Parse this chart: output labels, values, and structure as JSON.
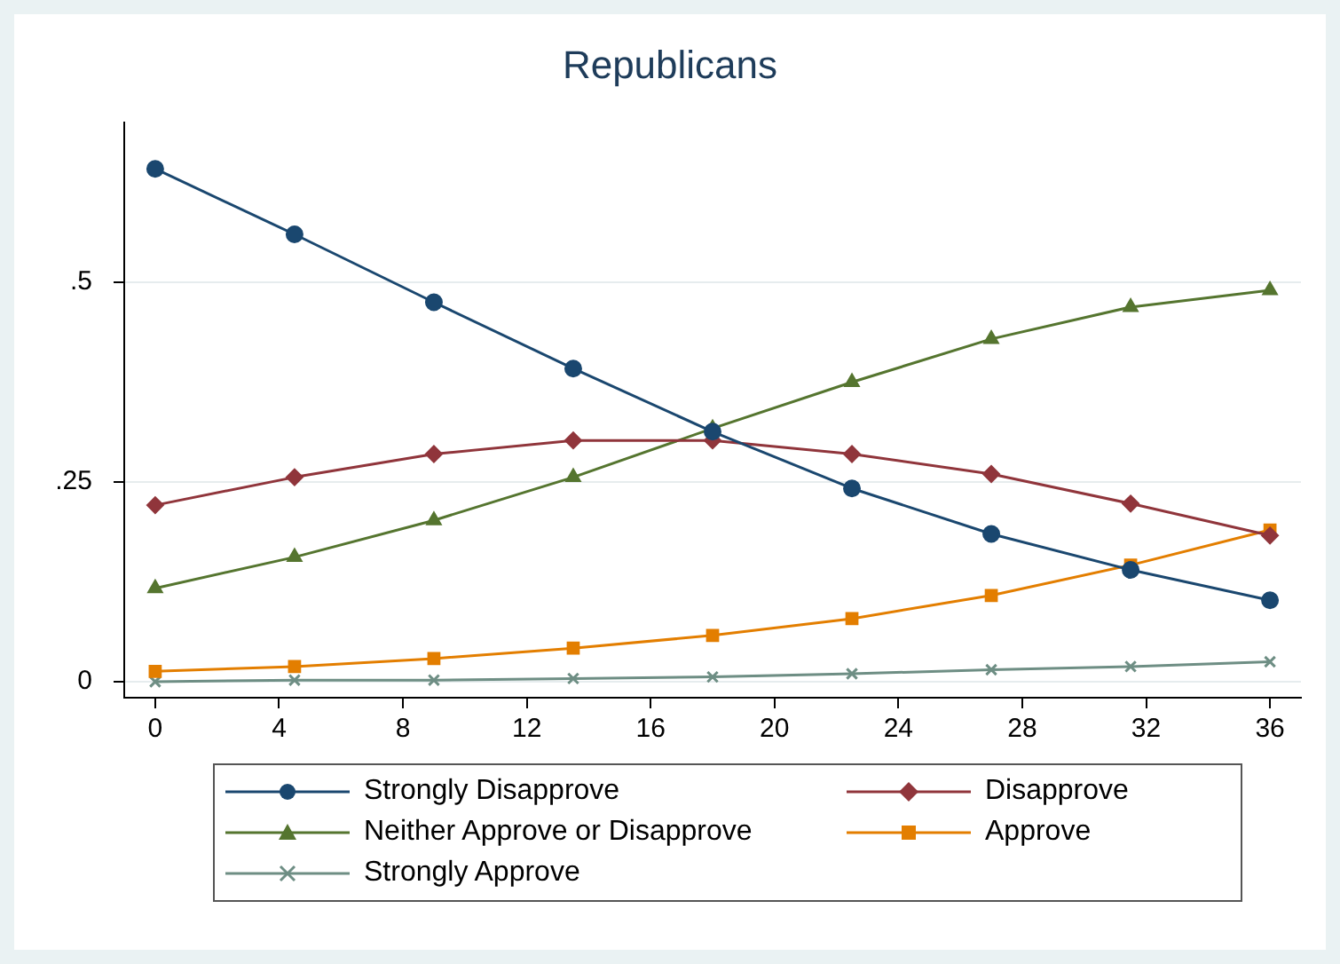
{
  "chart_data": {
    "type": "line",
    "title": "Republicans",
    "x": [
      0,
      4.5,
      9,
      13.5,
      18,
      22.5,
      27,
      31.5,
      36
    ],
    "series": [
      {
        "name": "Strongly Disapprove",
        "color": "#1a476f",
        "marker": "circle",
        "values": [
          0.642,
          0.56,
          0.475,
          0.392,
          0.313,
          0.242,
          0.185,
          0.14,
          0.102
        ]
      },
      {
        "name": "Disapprove",
        "color": "#90353b",
        "marker": "diamond",
        "values": [
          0.221,
          0.256,
          0.285,
          0.302,
          0.302,
          0.285,
          0.26,
          0.223,
          0.183
        ]
      },
      {
        "name": "Neither Approve or Disapprove",
        "color": "#55752f",
        "marker": "triangle",
        "values": [
          0.117,
          0.156,
          0.202,
          0.256,
          0.317,
          0.375,
          0.429,
          0.469,
          0.49
        ]
      },
      {
        "name": "Approve",
        "color": "#e37e00",
        "marker": "square",
        "values": [
          0.013,
          0.019,
          0.029,
          0.042,
          0.058,
          0.079,
          0.108,
          0.146,
          0.19
        ]
      },
      {
        "name": "Strongly Approve",
        "color": "#6e8e84",
        "marker": "cross",
        "values": [
          0,
          0.002,
          0.002,
          0.004,
          0.006,
          0.01,
          0.015,
          0.019,
          0.025
        ]
      }
    ],
    "xlim": [
      -1,
      37
    ],
    "xticks": [
      0,
      4,
      8,
      12,
      16,
      20,
      24,
      28,
      32,
      36
    ],
    "ylim": [
      -0.02,
      0.7
    ],
    "yticks": [
      0,
      {
        "value": 0.25,
        "label": ".25"
      },
      {
        "value": 0.5,
        "label": ".5"
      }
    ],
    "grid": "y",
    "legend": "bottom",
    "line_style": "solid"
  }
}
